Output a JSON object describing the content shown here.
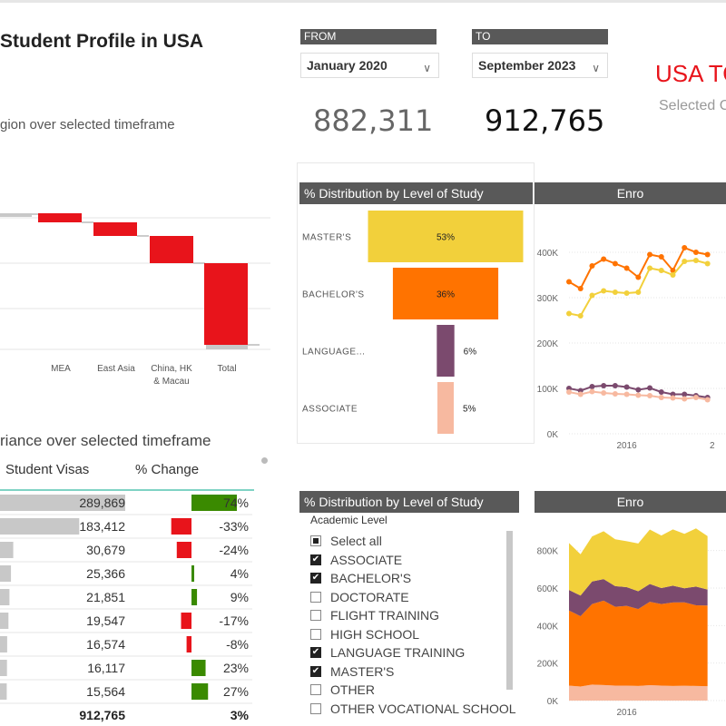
{
  "header": {
    "title": "Student Profile in USA",
    "waterfall_subtitle": "gion over selected timeframe",
    "from_label": "FROM",
    "to_label": "TO",
    "from_value": "January 2020",
    "to_value": "September 2023",
    "from_total": "882,311",
    "to_total": "912,765",
    "usa_title": "USA TO",
    "selected_text": "Selected C"
  },
  "colors": {
    "masters": "#f2d03b",
    "bachelors": "#ff7300",
    "language": "#7b4a6e",
    "associate": "#f7b9a0",
    "decrease": "#e8141b",
    "total": "#c8c8c8",
    "increase": "#3a8a00",
    "header_bg": "#595959"
  },
  "table": {
    "section_title": "riance over selected timeframe",
    "col_visas": "Student Visas",
    "col_change": "% Change",
    "rows": [
      {
        "visas": "289,869",
        "visas_num": 289869,
        "change": "74%",
        "change_num": 74
      },
      {
        "visas": "183,412",
        "visas_num": 183412,
        "change": "-33%",
        "change_num": -33
      },
      {
        "visas": "30,679",
        "visas_num": 30679,
        "change": "-24%",
        "change_num": -24
      },
      {
        "visas": "25,366",
        "visas_num": 25366,
        "change": "4%",
        "change_num": 4
      },
      {
        "visas": "21,851",
        "visas_num": 21851,
        "change": "9%",
        "change_num": 9
      },
      {
        "visas": "19,547",
        "visas_num": 19547,
        "change": "-17%",
        "change_num": -17
      },
      {
        "visas": "16,574",
        "visas_num": 16574,
        "change": "-8%",
        "change_num": -8
      },
      {
        "visas": "16,117",
        "visas_num": 16117,
        "change": "23%",
        "change_num": 23
      },
      {
        "visas": "15,564",
        "visas_num": 15564,
        "change": "27%",
        "change_num": 27
      }
    ],
    "total_visas": "912,765",
    "total_change": "3%"
  },
  "slicer": {
    "title": "% Distribution by Level of Study",
    "field_label": "Academic Level",
    "items": [
      {
        "label": "Select all",
        "state": "partial"
      },
      {
        "label": "ASSOCIATE",
        "state": "on"
      },
      {
        "label": "BACHELOR'S",
        "state": "on"
      },
      {
        "label": "DOCTORATE",
        "state": "off"
      },
      {
        "label": "FLIGHT TRAINING",
        "state": "off"
      },
      {
        "label": "HIGH SCHOOL",
        "state": "off"
      },
      {
        "label": "LANGUAGE TRAINING",
        "state": "on"
      },
      {
        "label": "MASTER'S",
        "state": "on"
      },
      {
        "label": "OTHER",
        "state": "off"
      },
      {
        "label": "OTHER VOCATIONAL SCHOOL",
        "state": "off"
      }
    ]
  },
  "chart_data": [
    {
      "type": "bar",
      "subtype": "waterfall",
      "categories": [
        "",
        "",
        "MEA",
        "East Asia",
        "China, HK & Macau",
        "Total"
      ],
      "values": [
        null,
        -10,
        -15,
        -30,
        -90,
        null
      ],
      "kinds": [
        "start",
        "decrease",
        "decrease",
        "decrease",
        "decrease",
        "total"
      ]
    },
    {
      "type": "bar",
      "subtype": "funnel",
      "title": "% Distribution by Level of Study",
      "categories": [
        "MASTER'S",
        "BACHELOR'S",
        "LANGUAGE...",
        "ASSOCIATE"
      ],
      "values": [
        53,
        36,
        6,
        5
      ],
      "labels": [
        "53%",
        "36%",
        "6%",
        "5%"
      ]
    },
    {
      "type": "line",
      "title": "Enro",
      "y_ticks": [
        "0K",
        "100K",
        "200K",
        "300K",
        "400K"
      ],
      "x_ticks": [
        "2016",
        "2"
      ],
      "ylim": [
        0,
        400000
      ],
      "x": [
        2013.5,
        2014,
        2014.5,
        2015,
        2015.5,
        2016,
        2016.5,
        2017,
        2017.5,
        2018,
        2018.5,
        2019,
        2019.5
      ],
      "series": [
        {
          "values": [
            335000,
            320000,
            370000,
            385000,
            375000,
            365000,
            345000,
            395000,
            390000,
            360000,
            410000,
            400000,
            395000
          ]
        },
        {
          "values": [
            265000,
            260000,
            305000,
            315000,
            312000,
            310000,
            312000,
            365000,
            360000,
            350000,
            380000,
            382000,
            375000
          ]
        },
        {
          "values": [
            100000,
            95000,
            104000,
            106000,
            106000,
            103000,
            97000,
            101000,
            92000,
            87000,
            87000,
            84000,
            80000
          ]
        },
        {
          "values": [
            92000,
            87000,
            93000,
            90000,
            88000,
            87000,
            85000,
            84000,
            80000,
            79000,
            77000,
            80000,
            75000
          ]
        }
      ]
    },
    {
      "type": "area",
      "title": "Enro",
      "y_ticks": [
        "0K",
        "200K",
        "400K",
        "600K",
        "800K"
      ],
      "x_ticks": [
        "2016"
      ],
      "ylim": [
        0,
        900000
      ],
      "x": [
        2013.5,
        2014,
        2014.5,
        2015,
        2015.5,
        2016,
        2016.5,
        2017,
        2017.5,
        2018,
        2018.5,
        2019,
        2019.5
      ],
      "series": [
        {
          "values": [
            80000,
            75000,
            85000,
            83000,
            80000,
            80000,
            78000,
            82000,
            80000,
            78000,
            79000,
            78000,
            77000
          ]
        },
        {
          "values": [
            400000,
            375000,
            430000,
            450000,
            420000,
            425000,
            410000,
            445000,
            435000,
            445000,
            445000,
            430000,
            430000
          ]
        },
        {
          "values": [
            110000,
            110000,
            120000,
            115000,
            110000,
            100000,
            95000,
            95000,
            85000,
            90000,
            75000,
            100000,
            85000
          ]
        },
        {
          "values": [
            250000,
            220000,
            240000,
            255000,
            250000,
            245000,
            255000,
            290000,
            280000,
            300000,
            290000,
            310000,
            285000
          ]
        }
      ]
    }
  ]
}
